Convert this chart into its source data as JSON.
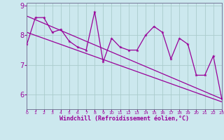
{
  "xlabel": "Windchill (Refroidissement éolien,°C)",
  "bg_color": "#cce8ee",
  "line_color": "#990099",
  "hours": [
    0,
    1,
    2,
    3,
    4,
    5,
    6,
    7,
    8,
    9,
    10,
    11,
    12,
    13,
    14,
    15,
    16,
    17,
    18,
    19,
    20,
    21,
    22,
    23
  ],
  "values": [
    7.7,
    8.6,
    8.6,
    8.1,
    8.2,
    7.8,
    7.6,
    7.5,
    8.8,
    7.1,
    7.9,
    7.6,
    7.5,
    7.5,
    8.0,
    8.3,
    8.1,
    7.2,
    7.9,
    7.7,
    6.65,
    6.65,
    7.3,
    5.85
  ],
  "trend1_start": 8.65,
  "trend1_end": 5.85,
  "trend2_start": 8.1,
  "trend2_end": 5.75,
  "ylim_min": 5.5,
  "ylim_max": 9.1,
  "xlim_min": 0,
  "xlim_max": 23,
  "yticks": [
    6,
    7,
    8,
    9
  ],
  "xticks": [
    0,
    1,
    2,
    3,
    4,
    5,
    6,
    7,
    8,
    9,
    10,
    11,
    12,
    13,
    14,
    15,
    16,
    17,
    18,
    19,
    20,
    21,
    22,
    23
  ],
  "grid_color": "#aacccc",
  "spine_color": "#777799"
}
